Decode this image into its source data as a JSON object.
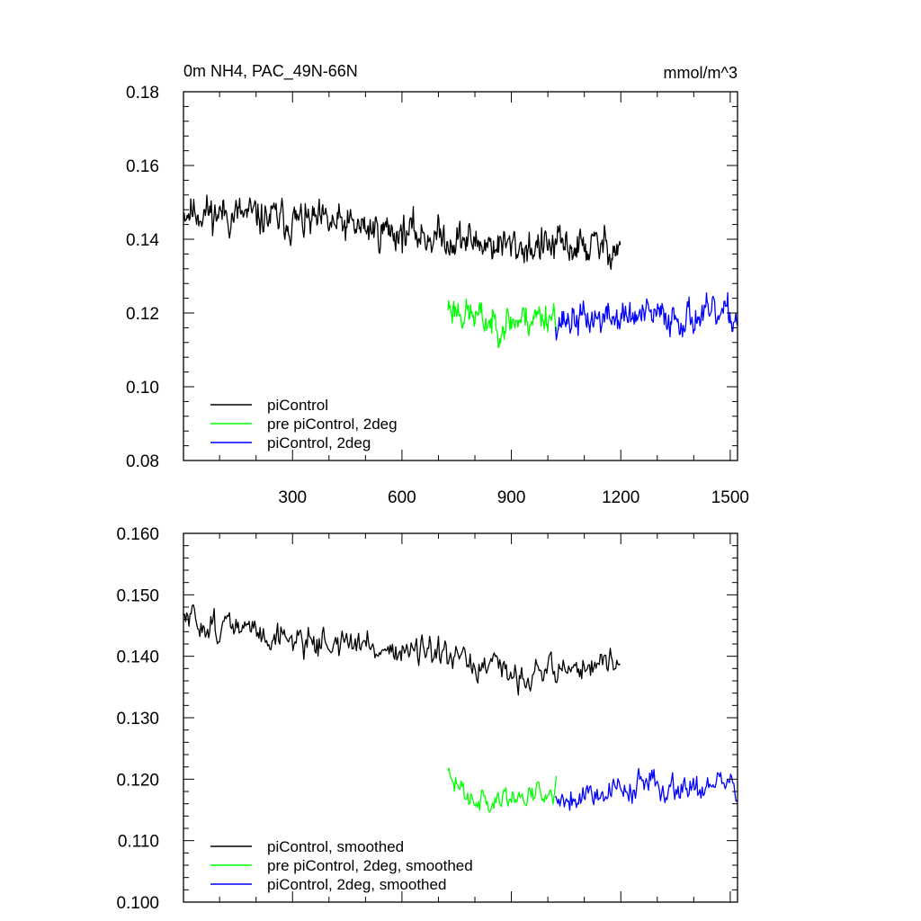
{
  "chart_data": [
    {
      "type": "line",
      "title": "0m NH4, PAC_49N-66N",
      "units": "mmol/m^3",
      "xlim": [
        1,
        1520
      ],
      "ylim": [
        0.08,
        0.18
      ],
      "xticks": [
        300,
        600,
        900,
        1200,
        1500
      ],
      "yticks": [
        "0.08",
        "0.10",
        "0.12",
        "0.14",
        "0.16",
        "0.18"
      ],
      "grid": false,
      "legend_position": "bottom-left",
      "series": [
        {
          "name": "piControl",
          "color": "#000000",
          "x_range": [
            1,
            1200
          ],
          "trend": [
            [
              1,
              0.148
            ],
            [
              300,
              0.145
            ],
            [
              600,
              0.142
            ],
            [
              900,
              0.138
            ],
            [
              1200,
              0.138
            ]
          ],
          "noise_amplitude": 0.009,
          "seed": 11
        },
        {
          "name": "pre piControl, 2deg",
          "color": "#00ff00",
          "x_range": [
            726,
            1025
          ],
          "trend": [
            [
              726,
              0.122
            ],
            [
              850,
              0.117
            ],
            [
              1025,
              0.12
            ]
          ],
          "noise_amplitude": 0.008,
          "seed": 23
        },
        {
          "name": "piControl, 2deg",
          "color": "#0000ff",
          "x_range": [
            1021,
            1520
          ],
          "trend": [
            [
              1021,
              0.118
            ],
            [
              1250,
              0.119
            ],
            [
              1520,
              0.119
            ]
          ],
          "noise_amplitude": 0.008,
          "seed": 37
        }
      ]
    },
    {
      "type": "line",
      "xlim": [
        1,
        1520
      ],
      "ylim": [
        0.1,
        0.16
      ],
      "yticks": [
        "0.100",
        "0.110",
        "0.120",
        "0.130",
        "0.140",
        "0.150",
        "0.160"
      ],
      "grid": false,
      "legend_position": "bottom-left",
      "series": [
        {
          "name": "piControl, smoothed",
          "color": "#000000",
          "x_range": [
            1,
            1200
          ],
          "trend": [
            [
              1,
              0.146
            ],
            [
              300,
              0.143
            ],
            [
              600,
              0.141
            ],
            [
              900,
              0.137
            ],
            [
              1200,
              0.139
            ]
          ],
          "noise_amplitude": 0.0045,
          "seed": 51
        },
        {
          "name": "pre piControl, 2deg, smoothed",
          "color": "#00ff00",
          "x_range": [
            726,
            1025
          ],
          "trend": [
            [
              726,
              0.12
            ],
            [
              850,
              0.116
            ],
            [
              1025,
              0.119
            ]
          ],
          "noise_amplitude": 0.004,
          "seed": 63
        },
        {
          "name": "piControl, 2deg, smoothed",
          "color": "#0000ff",
          "x_range": [
            1021,
            1520
          ],
          "trend": [
            [
              1021,
              0.117
            ],
            [
              1250,
              0.119
            ],
            [
              1520,
              0.119
            ]
          ],
          "noise_amplitude": 0.0045,
          "seed": 79
        }
      ]
    }
  ]
}
